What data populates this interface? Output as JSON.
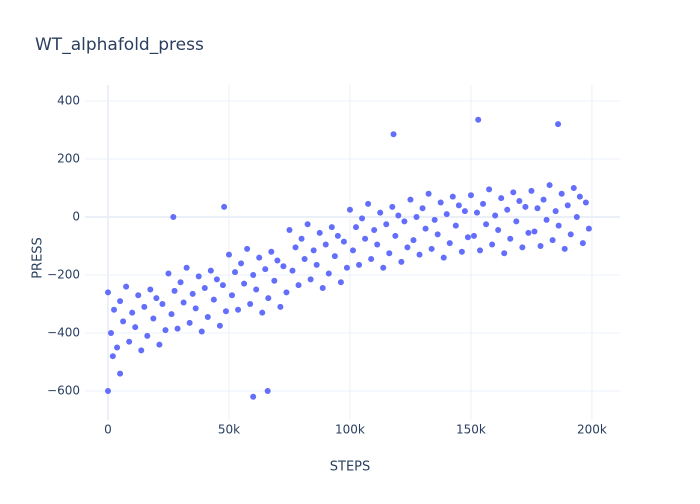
{
  "chart_data": {
    "type": "scatter",
    "title": "WT_alphafold_press",
    "x_label": "STEPS",
    "y_label": "PRESS",
    "xlim": [
      -9500,
      211600
    ],
    "ylim": [
      -700,
      455
    ],
    "xticks": [
      0,
      {
        "value": 50000,
        "label": "50k"
      },
      {
        "value": 100000,
        "label": "100k"
      },
      {
        "value": 150000,
        "label": "150k"
      },
      {
        "value": 200000,
        "label": "200k"
      }
    ],
    "yticks": [
      {
        "value": -600,
        "label": "−600"
      },
      {
        "value": -400,
        "label": "−400"
      },
      {
        "value": -200,
        "label": "−200"
      },
      0,
      200,
      400
    ],
    "grid": true,
    "series": [
      {
        "color": "#636efa",
        "x": [
          0,
          1250,
          2500,
          3750,
          5000,
          6250,
          7500,
          8750,
          10000,
          11250,
          12500,
          13750,
          15000,
          16250,
          17500,
          18750,
          20000,
          21250,
          22500,
          23750,
          25000,
          26250,
          27500,
          28750,
          30000,
          31250,
          32500,
          33750,
          35000,
          36250,
          37500,
          38750,
          40000,
          41250,
          42500,
          43750,
          45000,
          46250,
          47500,
          48750,
          50000,
          51250,
          52500,
          53750,
          55000,
          56250,
          57500,
          58750,
          60000,
          61250,
          62500,
          63750,
          65000,
          66250,
          67500,
          68750,
          70000,
          71250,
          72500,
          73750,
          75000,
          76250,
          77500,
          78750,
          80000,
          81250,
          82500,
          83750,
          85000,
          86250,
          87500,
          88750,
          90000,
          91250,
          92500,
          93750,
          95000,
          96250,
          97500,
          98750,
          100000,
          101250,
          102500,
          103750,
          105000,
          106250,
          107500,
          108750,
          110000,
          111250,
          112500,
          113750,
          115000,
          116250,
          117500,
          118750,
          120000,
          121250,
          122500,
          123750,
          125000,
          126250,
          127500,
          128750,
          130000,
          131250,
          132500,
          133750,
          135000,
          136250,
          137500,
          138750,
          140000,
          141250,
          142500,
          143750,
          145000,
          146250,
          147500,
          148750,
          150000,
          151250,
          152500,
          153750,
          155000,
          156250,
          157500,
          158750,
          160000,
          161250,
          162500,
          163750,
          165000,
          166250,
          167500,
          168750,
          170000,
          171250,
          172500,
          173750,
          175000,
          176250,
          177500,
          178750,
          180000,
          181250,
          182500,
          183750,
          185000,
          186250,
          187500,
          188750,
          190000,
          191250,
          192500,
          193750,
          195000,
          196250,
          197500,
          198750,
          0,
          60000,
          66000,
          153000,
          186000,
          118000,
          27000,
          48000,
          2000,
          5000
        ],
        "values": [
          -260,
          -400,
          -320,
          -450,
          -290,
          -360,
          -240,
          -430,
          -330,
          -380,
          -270,
          -460,
          -310,
          -410,
          -250,
          -350,
          -280,
          -440,
          -300,
          -390,
          -195,
          -335,
          -255,
          -385,
          -225,
          -295,
          -175,
          -365,
          -265,
          -315,
          -205,
          -395,
          -245,
          -345,
          -185,
          -285,
          -215,
          -375,
          -235,
          -325,
          -130,
          -270,
          -190,
          -320,
          -160,
          -230,
          -110,
          -300,
          -200,
          -250,
          -140,
          -330,
          -180,
          -280,
          -120,
          -220,
          -150,
          -310,
          -170,
          -260,
          -45,
          -185,
          -105,
          -235,
          -75,
          -145,
          -25,
          -215,
          -115,
          -165,
          -55,
          -245,
          -95,
          -195,
          -35,
          -135,
          -65,
          -225,
          -85,
          -175,
          25,
          -115,
          -35,
          -165,
          -5,
          -75,
          45,
          -145,
          -45,
          -95,
          15,
          -175,
          -25,
          -125,
          35,
          -65,
          5,
          -155,
          -15,
          -105,
          60,
          -80,
          0,
          -130,
          30,
          -40,
          80,
          -110,
          -10,
          -60,
          50,
          -140,
          10,
          -90,
          70,
          -30,
          40,
          -120,
          20,
          -70,
          75,
          -65,
          15,
          -115,
          45,
          -25,
          95,
          -95,
          5,
          -45,
          65,
          -125,
          25,
          -75,
          85,
          -15,
          55,
          -105,
          35,
          -55,
          90,
          -50,
          30,
          -100,
          60,
          -10,
          110,
          -80,
          20,
          -30,
          80,
          -110,
          40,
          -60,
          100,
          0,
          70,
          -90,
          50,
          -40,
          -600,
          -620,
          -600,
          335,
          320,
          285,
          0,
          35,
          -480,
          -540
        ]
      }
    ]
  }
}
